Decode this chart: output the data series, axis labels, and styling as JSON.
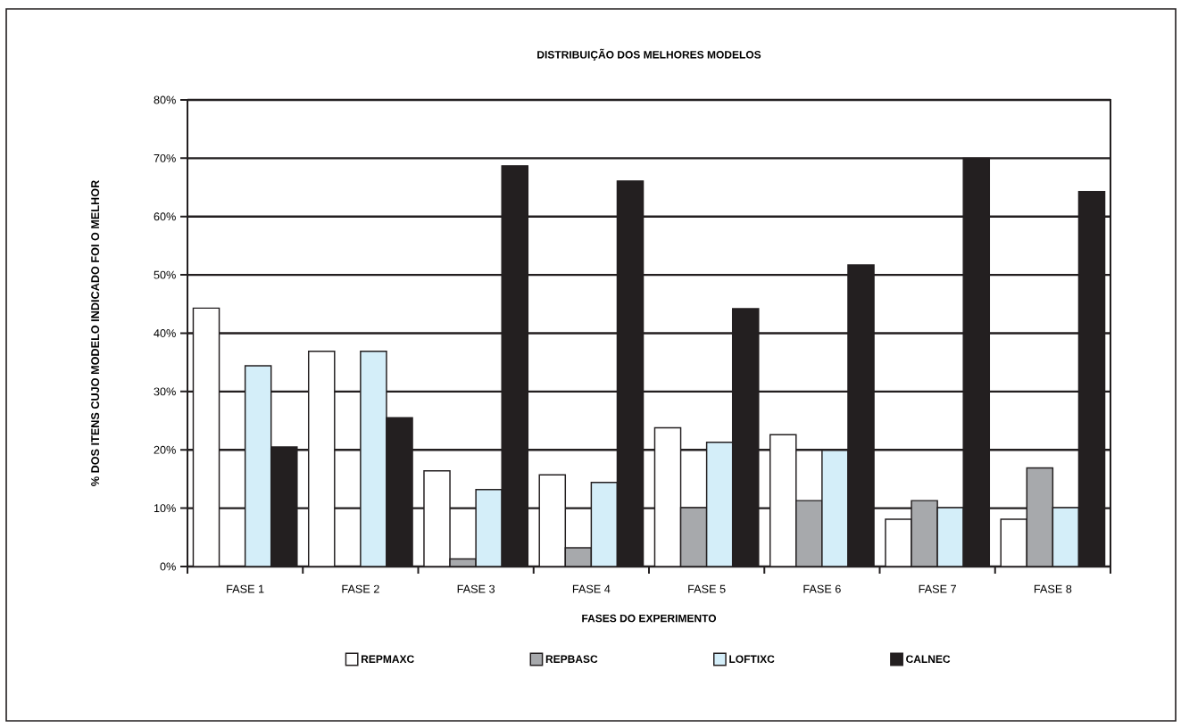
{
  "chart_data": {
    "type": "bar",
    "title": "DISTRIBUIÇÃO DOS MELHORES MODELOS",
    "xlabel": "FASES DO EXPERIMENTO",
    "ylabel": "% DOS ITENS CUJO MODELO INDICADO FOI O MELHOR",
    "categories": [
      "FASE 1",
      "FASE 2",
      "FASE 3",
      "FASE 4",
      "FASE 5",
      "FASE 6",
      "FASE 7",
      "FASE 8"
    ],
    "series": [
      {
        "name": "REPMAXC",
        "color": "#ffffff",
        "values": [
          44.3,
          36.9,
          16.4,
          15.7,
          23.8,
          22.6,
          8.1,
          8.1
        ]
      },
      {
        "name": "REPBASC",
        "color": "#a7a9ac",
        "values": [
          null,
          null,
          1.3,
          3.2,
          10.1,
          11.3,
          11.3,
          16.9
        ]
      },
      {
        "name": "LOFTIXC",
        "color": "#d4eef9",
        "values": [
          34.4,
          36.9,
          13.2,
          14.4,
          21.3,
          19.9,
          10.1,
          10.1
        ]
      },
      {
        "name": "CALNEC",
        "color": "#231f20",
        "values": [
          20.5,
          25.5,
          68.7,
          66.1,
          44.2,
          51.7,
          70.0,
          64.3
        ]
      }
    ],
    "ylim": [
      0,
      80
    ],
    "yticks": [
      {
        "value": 0,
        "label": "0%"
      },
      {
        "value": 10,
        "label": "10%"
      },
      {
        "value": 20,
        "label": "20%"
      },
      {
        "value": 30,
        "label": "30%"
      },
      {
        "value": 40,
        "label": "40%"
      },
      {
        "value": 50,
        "label": "50%"
      },
      {
        "value": 60,
        "label": "60%"
      },
      {
        "value": 70,
        "label": "70%"
      },
      {
        "value": 80,
        "label": "80%"
      }
    ],
    "grid": "y",
    "legend": "bottom"
  }
}
